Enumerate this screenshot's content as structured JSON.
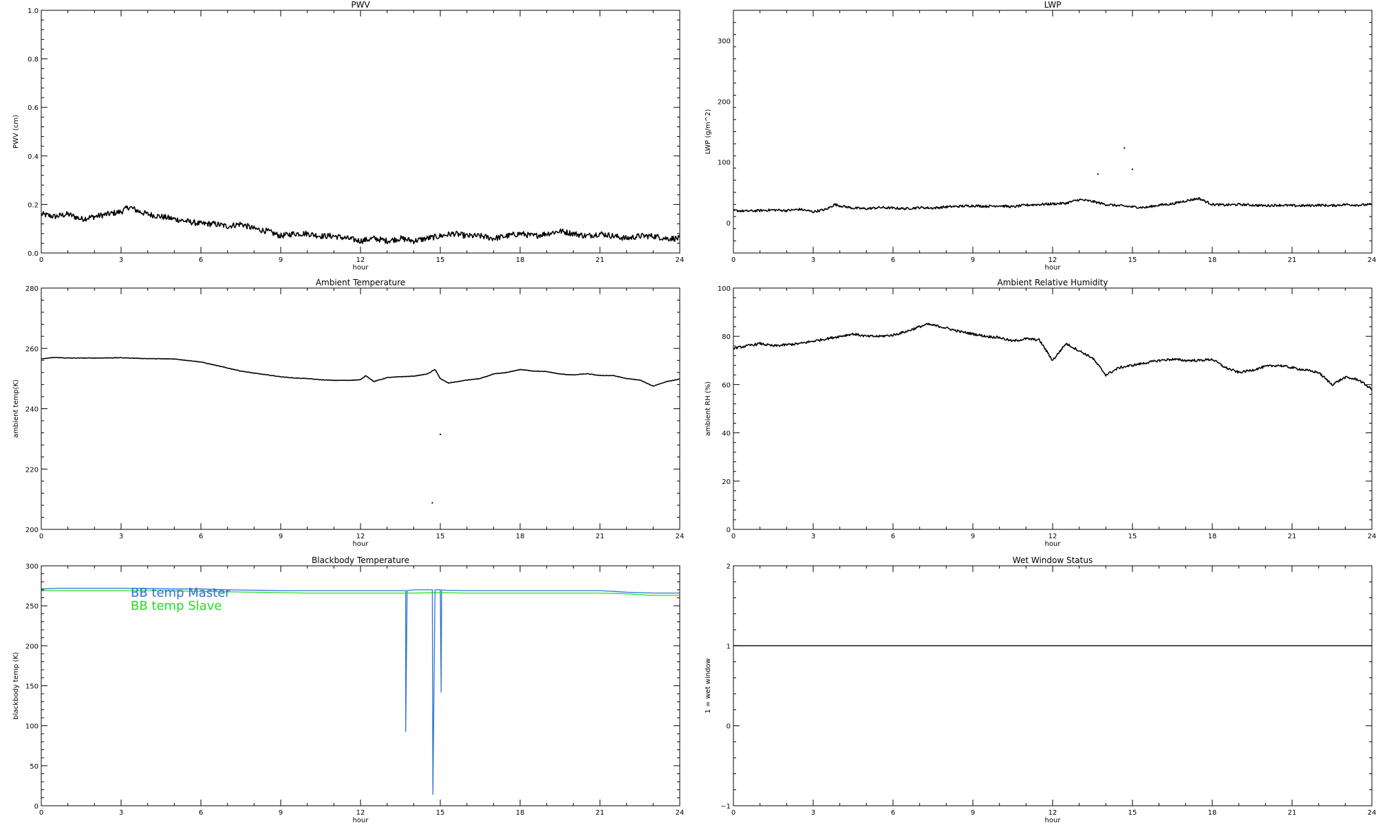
{
  "chart_data": [
    {
      "type": "line",
      "title": "PWV",
      "xlabel": "hour",
      "ylabel": "PWV (cm)",
      "xlim": [
        0,
        24
      ],
      "ylim": [
        0,
        1.0
      ],
      "xticks": [
        "0",
        "3",
        "6",
        "9",
        "12",
        "15",
        "18",
        "21",
        "24"
      ],
      "yticks": [
        "0.0",
        "0.2",
        "0.4",
        "0.6",
        "0.8",
        "1.0"
      ],
      "yticks_values": [
        0,
        0.2,
        0.4,
        0.6,
        0.8,
        1.0
      ],
      "grid": false,
      "series": [
        {
          "color": "#000000",
          "noise": 0.012,
          "x": [
            0,
            0.5,
            1,
            1.5,
            2,
            2.5,
            3,
            3.3,
            3.7,
            4,
            4.5,
            5,
            5.5,
            6,
            6.5,
            7,
            7.5,
            8,
            8.5,
            9,
            9.5,
            10,
            10.5,
            11,
            11.5,
            12,
            12.5,
            13,
            13.5,
            14,
            14.5,
            15,
            15.5,
            16,
            16.5,
            17,
            17.5,
            18,
            18.5,
            19,
            19.5,
            20,
            20.5,
            21,
            21.5,
            22,
            22.5,
            23,
            23.5,
            24
          ],
          "y": [
            0.16,
            0.15,
            0.16,
            0.14,
            0.15,
            0.16,
            0.17,
            0.19,
            0.17,
            0.16,
            0.15,
            0.14,
            0.13,
            0.12,
            0.12,
            0.11,
            0.12,
            0.1,
            0.09,
            0.07,
            0.08,
            0.08,
            0.07,
            0.07,
            0.06,
            0.05,
            0.06,
            0.05,
            0.06,
            0.05,
            0.06,
            0.07,
            0.08,
            0.07,
            0.07,
            0.06,
            0.07,
            0.08,
            0.07,
            0.08,
            0.09,
            0.08,
            0.07,
            0.08,
            0.07,
            0.06,
            0.07,
            0.07,
            0.06,
            0.06
          ]
        }
      ]
    },
    {
      "type": "line",
      "title": "LWP",
      "xlabel": "hour",
      "ylabel": "LWP (g/m^2)",
      "xlim": [
        0,
        24
      ],
      "ylim": [
        -50,
        350
      ],
      "xticks": [
        "0",
        "3",
        "6",
        "9",
        "12",
        "15",
        "18",
        "21",
        "24"
      ],
      "yticks": [
        "0",
        "100",
        "200",
        "300"
      ],
      "yticks_values": [
        0,
        100,
        200,
        300
      ],
      "grid": false,
      "series": [
        {
          "color": "#000000",
          "noise": 2.0,
          "x": [
            0,
            0.5,
            1,
            1.5,
            2,
            2.5,
            3,
            3.5,
            3.8,
            4,
            4.5,
            5,
            5.5,
            6,
            6.5,
            7,
            7.5,
            8,
            8.5,
            9,
            9.5,
            10,
            10.5,
            11,
            11.5,
            12,
            12.5,
            13,
            13.5,
            14,
            14.5,
            15,
            15.5,
            16,
            16.5,
            17,
            17.5,
            18,
            18.5,
            19,
            19.5,
            20,
            20.5,
            21,
            21.5,
            22,
            22.5,
            23,
            23.5,
            24
          ],
          "y": [
            20,
            19,
            20,
            21,
            20,
            22,
            18,
            22,
            30,
            28,
            24,
            23,
            25,
            24,
            23,
            25,
            24,
            26,
            27,
            28,
            27,
            28,
            26,
            29,
            30,
            31,
            32,
            38,
            35,
            30,
            28,
            26,
            25,
            29,
            31,
            36,
            40,
            30,
            29,
            30,
            29,
            28,
            29,
            28,
            28,
            29,
            28,
            30,
            29,
            30
          ]
        }
      ],
      "points": [
        {
          "x": 13.7,
          "y": 80
        },
        {
          "x": 14.7,
          "y": 123
        },
        {
          "x": 15.0,
          "y": 88
        }
      ]
    },
    {
      "type": "line",
      "title": "Ambient Temperature",
      "xlabel": "hour",
      "ylabel": "ambient temp(K)",
      "xlim": [
        0,
        24
      ],
      "ylim": [
        200,
        280
      ],
      "xticks": [
        "0",
        "3",
        "6",
        "9",
        "12",
        "15",
        "18",
        "21",
        "24"
      ],
      "yticks": [
        "200",
        "220",
        "240",
        "260",
        "280"
      ],
      "yticks_values": [
        200,
        220,
        240,
        260,
        280
      ],
      "grid": false,
      "series": [
        {
          "color": "#000000",
          "noise": 0.08,
          "x": [
            0,
            0.5,
            1,
            2,
            3,
            4,
            5,
            5.5,
            6,
            6.5,
            7,
            7.5,
            8,
            8.5,
            9,
            9.5,
            10,
            10.5,
            11,
            11.5,
            12,
            12.2,
            12.5,
            13,
            13.5,
            14,
            14.5,
            14.8,
            15,
            15.3,
            16,
            16.5,
            17,
            17.5,
            18,
            18.5,
            19,
            19.5,
            20,
            20.5,
            21,
            21.5,
            22,
            22.5,
            23,
            23.5,
            24
          ],
          "y": [
            256.5,
            257,
            256.8,
            256.8,
            256.9,
            256.6,
            256.5,
            256,
            255.5,
            254.5,
            253.5,
            252.5,
            251.8,
            251.2,
            250.6,
            250.2,
            250,
            249.6,
            249.4,
            249.4,
            249.6,
            251,
            249,
            250.3,
            250.6,
            250.8,
            251.5,
            253,
            250,
            248.5,
            249.5,
            250,
            251.5,
            252,
            253,
            252.5,
            252.3,
            251.5,
            251.2,
            251.6,
            251,
            251,
            250,
            249.5,
            247.5,
            249,
            249.8
          ]
        }
      ],
      "points": [
        {
          "x": 15.0,
          "y": 231.5
        },
        {
          "x": 14.7,
          "y": 208.8
        }
      ]
    },
    {
      "type": "line",
      "title": "Ambient Relative Humidity",
      "xlabel": "hour",
      "ylabel": "ambient RH (%)",
      "xlim": [
        0,
        24
      ],
      "ylim": [
        0,
        100
      ],
      "xticks": [
        "0",
        "3",
        "6",
        "9",
        "12",
        "15",
        "18",
        "21",
        "24"
      ],
      "yticks": [
        "0",
        "20",
        "40",
        "60",
        "80",
        "100"
      ],
      "yticks_values": [
        0,
        20,
        40,
        60,
        80,
        100
      ],
      "grid": false,
      "series": [
        {
          "color": "#000000",
          "noise": 0.5,
          "x": [
            0,
            0.5,
            1,
            1.5,
            2,
            2.5,
            3,
            3.5,
            4,
            4.5,
            5,
            5.5,
            6,
            6.5,
            7,
            7.3,
            7.8,
            8.5,
            9,
            9.5,
            10,
            10.5,
            11,
            11.5,
            12,
            12.5,
            13,
            13.5,
            14,
            14.5,
            15,
            15.5,
            16,
            16.5,
            17,
            17.5,
            18,
            18.5,
            19,
            19.5,
            20,
            20.5,
            21,
            21.5,
            22,
            22.5,
            23,
            23.5,
            24
          ],
          "y": [
            75,
            76,
            77,
            76,
            76.5,
            77,
            78,
            79,
            80,
            81,
            80,
            80,
            80.5,
            82,
            84,
            85,
            84,
            82,
            81,
            80,
            79.5,
            78,
            79,
            78.5,
            70,
            77,
            74,
            71,
            64,
            67,
            68,
            69,
            70,
            70.5,
            70,
            70,
            70.5,
            67,
            65,
            66,
            67.5,
            68,
            67,
            66,
            65,
            60,
            63,
            62,
            58
          ]
        }
      ]
    },
    {
      "type": "line",
      "title": "Blackbody Temperature",
      "xlabel": "hour",
      "ylabel": "blackbody temp (K)",
      "xlim": [
        0,
        24
      ],
      "ylim": [
        0,
        300
      ],
      "xticks": [
        "0",
        "3",
        "6",
        "9",
        "12",
        "15",
        "18",
        "21",
        "24"
      ],
      "yticks": [
        "0",
        "50",
        "100",
        "150",
        "200",
        "250",
        "300"
      ],
      "yticks_values": [
        0,
        50,
        100,
        150,
        200,
        250,
        300
      ],
      "grid": false,
      "legend_position": "top-left",
      "series": [
        {
          "name": "BB temp Master",
          "color": "#2b6fd6",
          "x": [
            0,
            0.7,
            2,
            3,
            4,
            5,
            6,
            7,
            8,
            9,
            10,
            11,
            12,
            13,
            13.6,
            13.7,
            13.7,
            13.75,
            14,
            14.6,
            14.7,
            14.72,
            14.8,
            15,
            15.03,
            15.05,
            15.2,
            16,
            17,
            18,
            19,
            20,
            21,
            21.5,
            22,
            23,
            24
          ],
          "y": [
            271,
            272,
            272,
            272,
            271.5,
            271,
            271,
            270,
            269.5,
            269,
            269,
            269,
            269,
            269,
            269,
            269,
            93,
            269,
            270,
            270,
            270,
            14,
            270,
            270,
            142,
            270,
            269.5,
            269,
            269,
            269,
            269,
            269,
            269,
            268,
            267,
            266,
            266
          ]
        },
        {
          "name": "BB temp Slave",
          "color": "#22dd22",
          "x": [
            0,
            1,
            2,
            3,
            4,
            5,
            6,
            7,
            8,
            9,
            10,
            11,
            12,
            13,
            14,
            15,
            16,
            17,
            18,
            19,
            20,
            21,
            22,
            22.5,
            23,
            24
          ],
          "y": [
            269,
            269,
            269,
            269,
            269,
            268.5,
            268,
            267.5,
            267,
            266.5,
            266,
            266,
            266,
            266,
            266,
            266.5,
            266,
            266,
            266,
            266,
            266,
            266,
            265,
            264,
            263,
            263
          ]
        }
      ]
    },
    {
      "type": "line",
      "title": "Wet Window Status",
      "xlabel": "hour",
      "ylabel": "1 = wet window",
      "xlim": [
        0,
        24
      ],
      "ylim": [
        -1,
        2
      ],
      "xticks": [
        "0",
        "3",
        "6",
        "9",
        "12",
        "15",
        "18",
        "21",
        "24"
      ],
      "yticks": [
        "−1",
        "0",
        "1",
        "2"
      ],
      "yticks_values": [
        -1,
        0,
        1,
        2
      ],
      "grid": false,
      "series": [
        {
          "color": "#000000",
          "x": [
            0,
            24
          ],
          "y": [
            1,
            1
          ]
        }
      ]
    }
  ]
}
